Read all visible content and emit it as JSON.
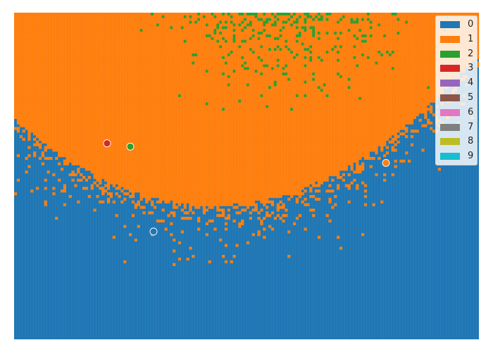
{
  "chart_data": {
    "type": "heatmap",
    "title": "",
    "xlabel": "",
    "ylabel": "",
    "axes_visible": false,
    "grid": false,
    "legend_position": "top-right",
    "grid_resolution": [
      170,
      120
    ],
    "classes": [
      {
        "label": "0",
        "color": "#1f77b4"
      },
      {
        "label": "1",
        "color": "#ff7f0e"
      },
      {
        "label": "2",
        "color": "#2ca02c"
      },
      {
        "label": "3",
        "color": "#d62728"
      },
      {
        "label": "4",
        "color": "#9467bd"
      },
      {
        "label": "5",
        "color": "#8c564b"
      },
      {
        "label": "6",
        "color": "#e377c2"
      },
      {
        "label": "7",
        "color": "#7f7f7f"
      },
      {
        "label": "8",
        "color": "#bcbd22"
      },
      {
        "label": "9",
        "color": "#17becf"
      }
    ],
    "regions": [
      {
        "class": "1",
        "area": "upper region above a U-shaped boundary"
      },
      {
        "class": "0",
        "area": "lower region below the boundary"
      },
      {
        "class": "2",
        "area": "scattered cells near the top center"
      }
    ],
    "points": [
      {
        "x": 0.2,
        "y": 0.6,
        "class": "3"
      },
      {
        "x": 0.25,
        "y": 0.59,
        "class": "2"
      },
      {
        "x": 0.3,
        "y": 0.33,
        "class": "0"
      },
      {
        "x": 0.8,
        "y": 0.54,
        "class": "1"
      }
    ]
  }
}
